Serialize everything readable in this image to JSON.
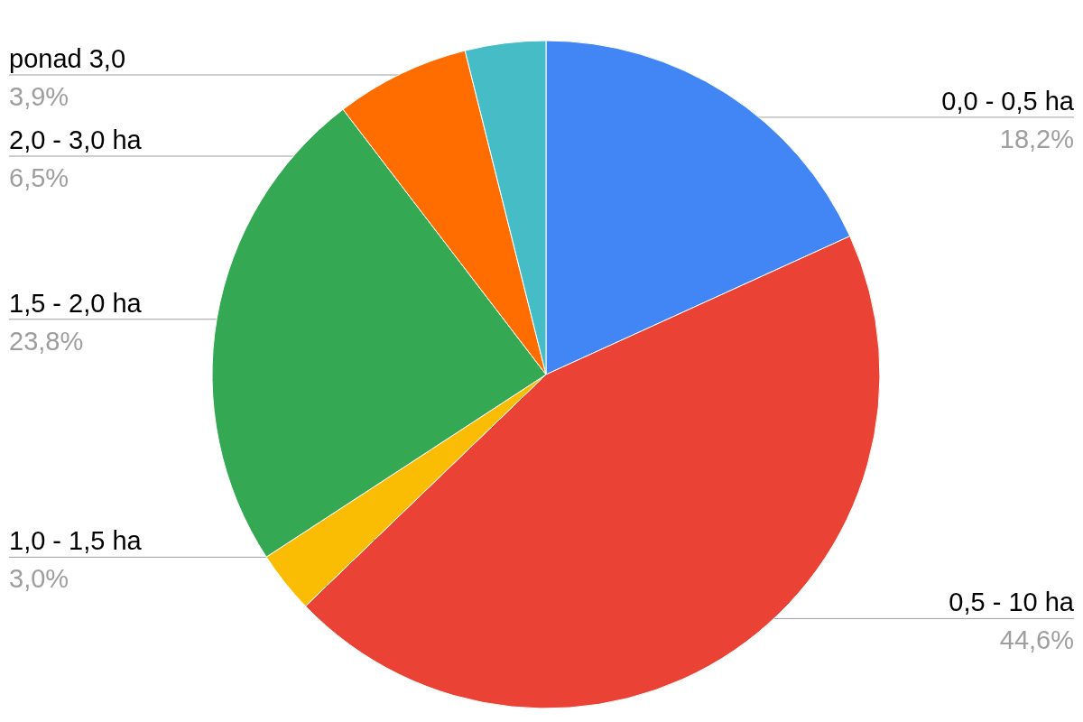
{
  "chart_data": {
    "type": "pie",
    "categories": [
      "0,0 - 0,5 ha",
      "0,5 - 10 ha",
      "1,0 - 1,5 ha",
      "1,5 - 2,0 ha",
      "2,0 - 3,0 ha",
      "ponad 3,0"
    ],
    "values": [
      18.2,
      44.6,
      3.0,
      23.8,
      6.5,
      3.9
    ],
    "colors": [
      "#4285f4",
      "#ea4335",
      "#fbbc04",
      "#34a853",
      "#ff6d01",
      "#46bdc6"
    ],
    "value_labels": [
      "18,2%",
      "44,6%",
      "3,0%",
      "23,8%",
      "6,5%",
      "3,9%"
    ]
  }
}
